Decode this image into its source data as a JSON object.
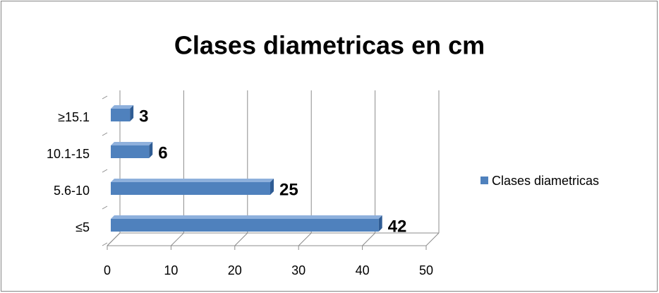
{
  "chart_data": {
    "type": "bar",
    "orientation": "horizontal",
    "title": "Clases diametricas en cm",
    "categories": [
      "≤5",
      "5.6-10",
      "10.1-15",
      "≥15.1"
    ],
    "series": [
      {
        "name": "Clases diametricas",
        "color": "#4f81bd",
        "values": [
          42,
          25,
          6,
          3
        ]
      }
    ],
    "xlim": [
      0,
      50
    ],
    "xticks": [
      0,
      10,
      20,
      30,
      40,
      50
    ],
    "grid": true,
    "legend": "right"
  }
}
